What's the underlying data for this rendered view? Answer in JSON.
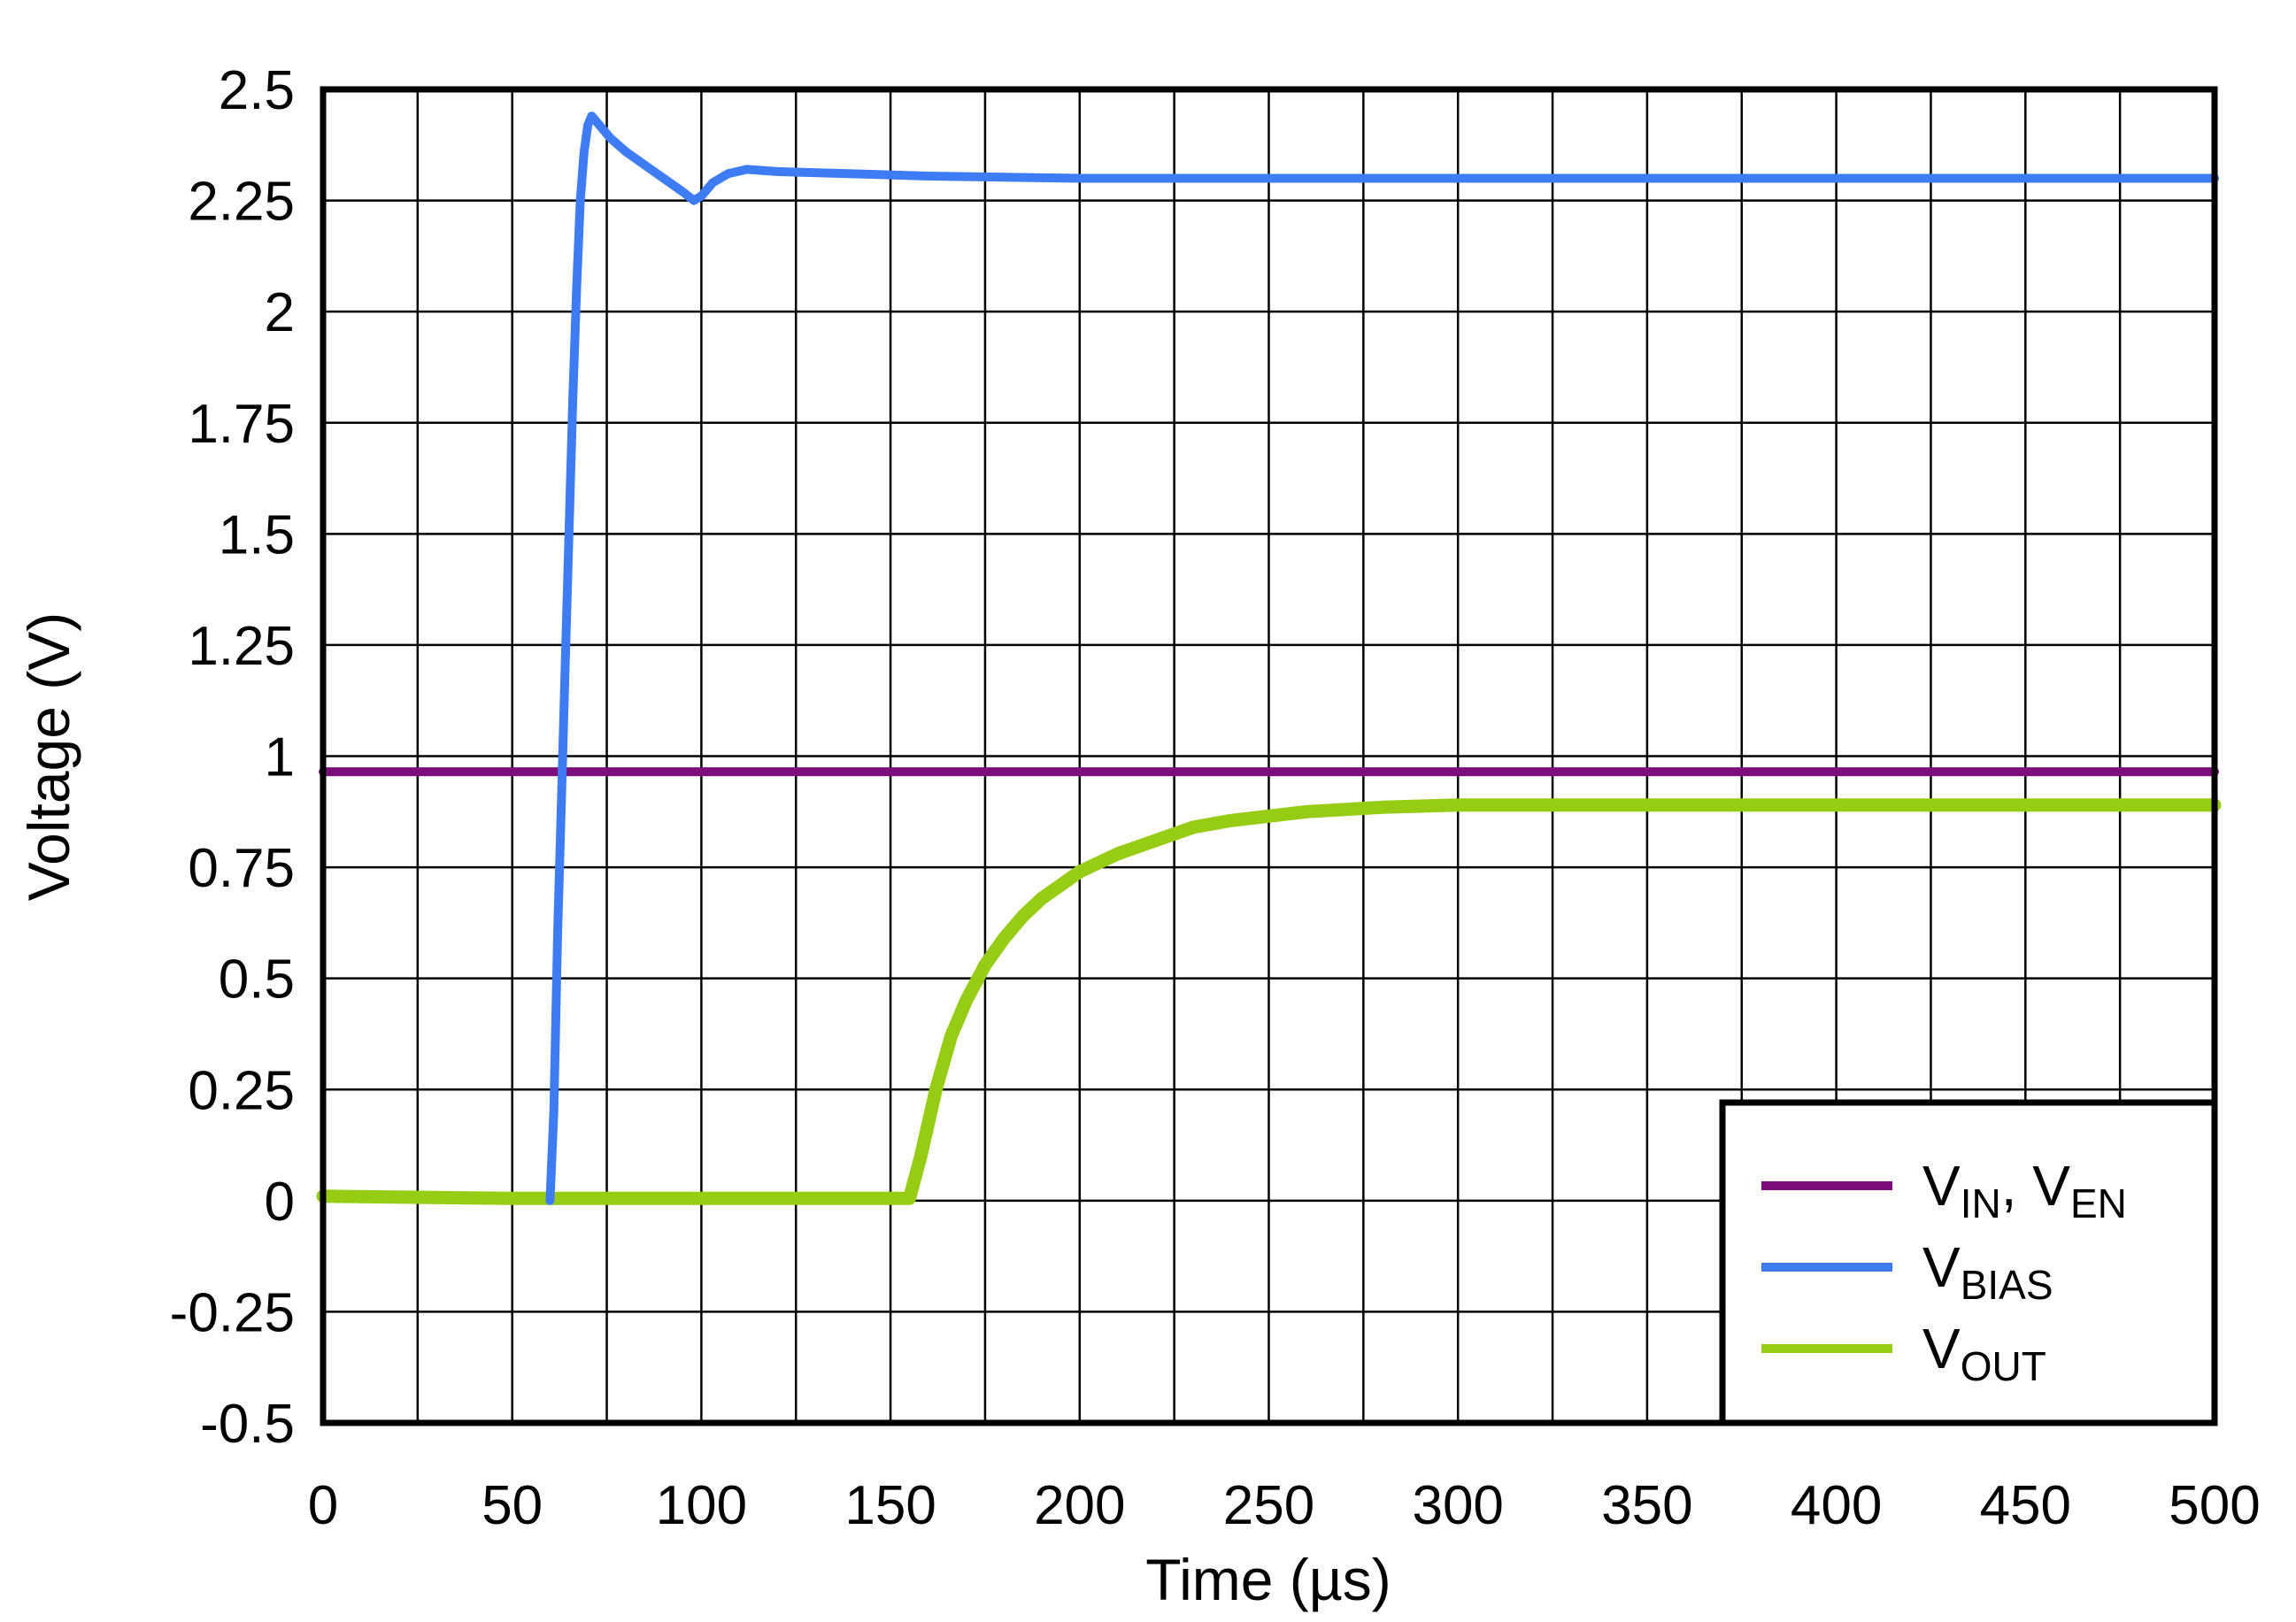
{
  "chart_data": {
    "type": "line",
    "xlabel": "Time (µs)",
    "ylabel": "Voltage (V)",
    "xlim": [
      0,
      500
    ],
    "ylim": [
      -0.5,
      2.5
    ],
    "x_ticks": [
      "0",
      "50",
      "100",
      "150",
      "200",
      "250",
      "300",
      "350",
      "400",
      "450",
      "500"
    ],
    "y_ticks": [
      "2.5",
      "2.25",
      "2",
      "1.75",
      "1.5",
      "1.25",
      "1",
      "0.75",
      "0.5",
      "0.25",
      "0",
      "-0.25",
      "-0.5"
    ],
    "grid": true,
    "legend_position": "bottom-right",
    "series": [
      {
        "name": "VIN, VEN",
        "label_main_1": "V",
        "label_sub_1": "IN",
        "label_sep": ", ",
        "label_main_2": "V",
        "label_sub_2": "EN",
        "color": "#7B0E7B",
        "points": [
          [
            0,
            0.965
          ],
          [
            100,
            0.965
          ],
          [
            200,
            0.965
          ],
          [
            300,
            0.965
          ],
          [
            400,
            0.965
          ],
          [
            500,
            0.965
          ]
        ]
      },
      {
        "name": "VBIAS",
        "label_main_1": "V",
        "label_sub_1": "BIAS",
        "color": "#3D7CF5",
        "points": [
          [
            60,
            0
          ],
          [
            61,
            0.2
          ],
          [
            62,
            0.6
          ],
          [
            63,
            0.9
          ],
          [
            64,
            1.2
          ],
          [
            65,
            1.5
          ],
          [
            66,
            1.8
          ],
          [
            67,
            2.05
          ],
          [
            68,
            2.25
          ],
          [
            69,
            2.36
          ],
          [
            70,
            2.42
          ],
          [
            71,
            2.44
          ],
          [
            73,
            2.42
          ],
          [
            76,
            2.39
          ],
          [
            80,
            2.36
          ],
          [
            85,
            2.33
          ],
          [
            90,
            2.3
          ],
          [
            95,
            2.27
          ],
          [
            98,
            2.25
          ],
          [
            100,
            2.26
          ],
          [
            103,
            2.29
          ],
          [
            107,
            2.31
          ],
          [
            112,
            2.32
          ],
          [
            120,
            2.315
          ],
          [
            140,
            2.31
          ],
          [
            160,
            2.305
          ],
          [
            200,
            2.3
          ],
          [
            300,
            2.3
          ],
          [
            400,
            2.3
          ],
          [
            500,
            2.3
          ]
        ]
      },
      {
        "name": "VOUT",
        "label_main_1": "V",
        "label_sub_1": "OUT",
        "color": "#96CC14",
        "points": [
          [
            0,
            0.01
          ],
          [
            50,
            0.005
          ],
          [
            100,
            0.005
          ],
          [
            150,
            0.005
          ],
          [
            155,
            0.005
          ],
          [
            158,
            0.1
          ],
          [
            162,
            0.25
          ],
          [
            166,
            0.37
          ],
          [
            170,
            0.45
          ],
          [
            175,
            0.53
          ],
          [
            180,
            0.59
          ],
          [
            185,
            0.64
          ],
          [
            190,
            0.68
          ],
          [
            195,
            0.71
          ],
          [
            200,
            0.74
          ],
          [
            210,
            0.78
          ],
          [
            220,
            0.81
          ],
          [
            230,
            0.84
          ],
          [
            240,
            0.855
          ],
          [
            250,
            0.865
          ],
          [
            260,
            0.875
          ],
          [
            270,
            0.88
          ],
          [
            280,
            0.885
          ],
          [
            300,
            0.89
          ],
          [
            350,
            0.89
          ],
          [
            400,
            0.89
          ],
          [
            450,
            0.89
          ],
          [
            500,
            0.89
          ]
        ]
      }
    ]
  }
}
